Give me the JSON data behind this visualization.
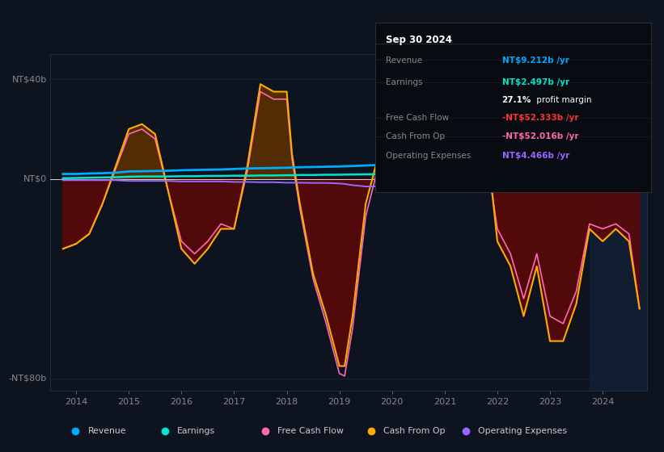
{
  "background_color": "#0d1420",
  "plot_bg_color": "#0d1420",
  "info_box_bg": "#080c12",
  "legend_bg": "#111827",
  "colors": {
    "revenue": "#00aaff",
    "earnings": "#00e5cc",
    "free_cash_flow": "#ff69b4",
    "cash_from_op": "#ffaa00",
    "operating_expenses": "#9966ff",
    "fill_positive": "#5a3000",
    "fill_negative": "#5a0808",
    "zero_line": "#ffffff",
    "grid": "#1a2535",
    "tick_label": "#888888",
    "border": "#2a3a4a"
  },
  "xlim": [
    2013.5,
    2024.85
  ],
  "ylim": [
    -85,
    50
  ],
  "ytick_vals": [
    -80,
    0,
    40
  ],
  "ytick_labels": [
    "-NT$80b",
    "NT$0",
    "NT$40b"
  ],
  "xtick_vals": [
    2014,
    2015,
    2016,
    2017,
    2018,
    2019,
    2020,
    2021,
    2022,
    2023,
    2024
  ],
  "xtick_labels": [
    "2014",
    "2015",
    "2016",
    "2017",
    "2018",
    "2019",
    "2020",
    "2021",
    "2022",
    "2023",
    "2024"
  ],
  "shade_start": 2023.75,
  "shade_end": 2024.85,
  "info_box": {
    "date": "Sep 30 2024",
    "rows": [
      {
        "label": "Revenue",
        "value": "NT$9.212b /yr",
        "value_color": "#00aaff",
        "label_color": "#888888"
      },
      {
        "label": "Earnings",
        "value": "NT$2.497b /yr",
        "value_color": "#00e5cc",
        "label_color": "#888888"
      },
      {
        "label": "",
        "value": "27.1% profit margin",
        "value_color": "#ffffff",
        "label_color": "#888888"
      },
      {
        "label": "Free Cash Flow",
        "value": "-NT$52.333b /yr",
        "value_color": "#ff3333",
        "label_color": "#888888"
      },
      {
        "label": "Cash From Op",
        "value": "-NT$52.016b /yr",
        "value_color": "#ff69b4",
        "label_color": "#888888"
      },
      {
        "label": "Operating Expenses",
        "value": "NT$4.466b /yr",
        "value_color": "#9966ff",
        "label_color": "#888888"
      }
    ]
  },
  "legend": [
    {
      "label": "Revenue",
      "color": "#00aaff"
    },
    {
      "label": "Earnings",
      "color": "#00e5cc"
    },
    {
      "label": "Free Cash Flow",
      "color": "#ff69b4"
    },
    {
      "label": "Cash From Op",
      "color": "#ffaa00"
    },
    {
      "label": "Operating Expenses",
      "color": "#9966ff"
    }
  ]
}
